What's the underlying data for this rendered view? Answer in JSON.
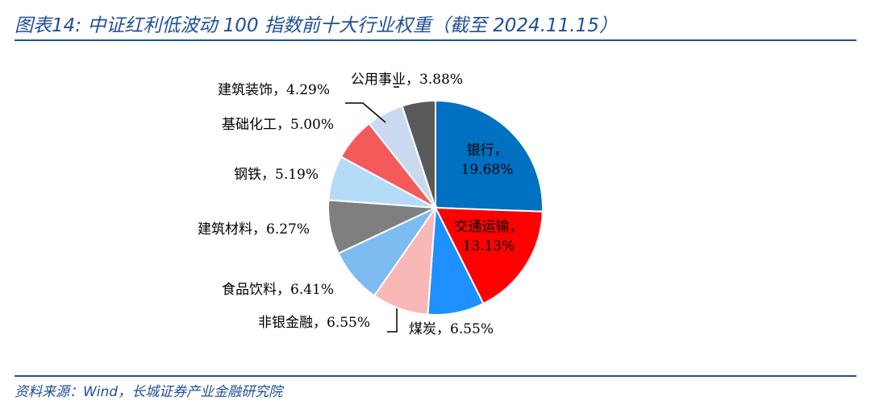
{
  "header": {
    "title": "图表14:  中证红利低波动 100 指数前十大行业权重（截至 2024.11.15）"
  },
  "footer": {
    "source": "资料来源：Wind，长城证券产业金融研究院"
  },
  "chart_data": {
    "type": "pie",
    "title": "图表14:  中证红利低波动 100 指数前十大行业权重（截至 2024.11.15）",
    "unit": "%",
    "slices": [
      {
        "name": "银行",
        "value": 19.68,
        "label": "银行，",
        "value_label": "19.68%",
        "color": "#0070C0"
      },
      {
        "name": "交通运输",
        "value": 13.13,
        "label": "交通运输，",
        "value_label": "13.13%",
        "color": "#FF0000"
      },
      {
        "name": "煤炭",
        "value": 6.55,
        "label": "煤炭，6.55%",
        "color": "#1E90FF"
      },
      {
        "name": "非银金融",
        "value": 6.55,
        "label": "非银金融，6.55%",
        "color": "#F8B8B8"
      },
      {
        "name": "食品饮料",
        "value": 6.41,
        "label": "食品饮料，6.41%",
        "color": "#7DBBF0"
      },
      {
        "name": "建筑材料",
        "value": 6.27,
        "label": "建筑材料，6.27%",
        "color": "#7F7F7F"
      },
      {
        "name": "钢铁",
        "value": 5.19,
        "label": "钢铁，5.19%",
        "color": "#B4DCF8"
      },
      {
        "name": "基础化工",
        "value": 5.0,
        "label": "基础化工，5.00%",
        "color": "#F55A5A"
      },
      {
        "name": "建筑装饰",
        "value": 4.29,
        "label": "建筑装饰，4.29%",
        "color": "#C9DAF0"
      },
      {
        "name": "公用事业",
        "value": 3.88,
        "label": "公用事业，3.88%",
        "color": "#595959"
      }
    ]
  }
}
